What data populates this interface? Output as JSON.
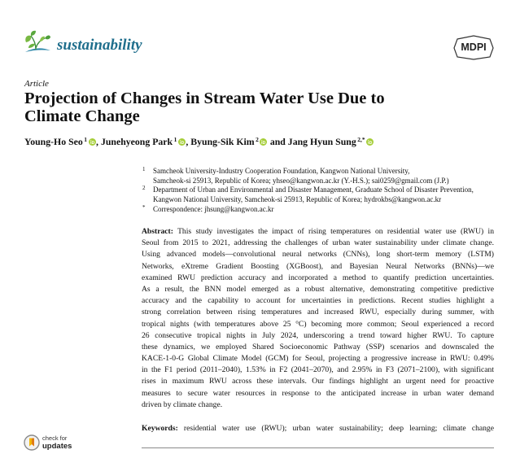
{
  "journal": {
    "name": "sustainability",
    "publisher": "MDPI"
  },
  "article_type": "Article",
  "title": {
    "lines": [
      "Projection of Changes in Stream Water Use Due to",
      "Climate Change"
    ]
  },
  "authors": [
    {
      "name": "Young-Ho Seo",
      "sup": "1",
      "sep": ", "
    },
    {
      "name": "Junehyeong Park",
      "sup": "1",
      "sep": ", "
    },
    {
      "name": "Byung-Sik Kim",
      "sup": "2",
      "sep": " and "
    },
    {
      "name": "Jang Hyun Sung",
      "sup": "2,*",
      "sep": ""
    }
  ],
  "affiliations": [
    {
      "marker": "1",
      "lines": [
        "Samcheok University-Industry Cooperation Foundation, Kangwon National University,",
        "Samcheok-si 25913, Republic of Korea; yhseo@kangwon.ac.kr (Y.-H.S.); sai0259@gmail.com (J.P.)"
      ]
    },
    {
      "marker": "2",
      "lines": [
        "Department of Urban and Environmental and Disaster Management, Graduate School of Disaster Prevention,",
        "Kangwon National University, Samcheok-si 25913, Republic of Korea; hydrokbs@kangwon.ac.kr"
      ]
    },
    {
      "marker": "*",
      "lines": [
        "Correspondence: jhsung@kangwon.ac.kr"
      ]
    }
  ],
  "abstract": {
    "label": "Abstract:",
    "lines": [
      "This study investigates the impact of rising temperatures on residential water use (RWU) in",
      "Seoul from 2015 to 2021, addressing the challenges of urban water sustainability under climate change.",
      "Using advanced models—convolutional neural networks (CNNs), long short-term memory (LSTM)",
      "Networks, eXtreme Gradient Boosting (XGBoost), and Bayesian Neural Networks (BNNs)—we",
      "examined RWU prediction accuracy and incorporated a method to quantify prediction uncertainties.",
      "As a result, the BNN model emerged as a robust alternative, demonstrating competitive predictive",
      "accuracy and the capability to account for uncertainties in predictions. Recent studies highlight a",
      "strong correlation between rising temperatures and increased RWU, especially during summer, with",
      "tropical nights (with temperatures above 25 °C) becoming more common; Seoul experienced a record",
      "26 consecutive tropical nights in July 2024, underscoring a trend toward higher RWU. To capture",
      "these dynamics, we employed Shared Socioeconomic Pathway (SSP) scenarios and downscaled the",
      "KACE-1-0-G Global Climate Model (GCM) for Seoul, projecting a progressive increase in RWU: 0.49%",
      "in the F1 period (2011–2040), 1.53% in F2 (2041–2070), and 2.95% in F3 (2071–2100), with significant",
      "rises in maximum RWU across these intervals. Our findings highlight an urgent need for proactive",
      "measures to secure water resources in response to the anticipated increase in urban water demand",
      "driven by climate change."
    ]
  },
  "keywords": {
    "label": "Keywords:",
    "text": "residential water use (RWU); urban water sustainability; deep learning; climate change"
  },
  "updates_badge": {
    "line1": "check for",
    "line2": "updates"
  },
  "icons": {
    "journal_logo": "sprout-leaf-icon",
    "publisher_logo": "mdpi-logo",
    "orcid": "orcid-icon",
    "updates": "check-for-updates-icon"
  },
  "colors": {
    "journal_teal": "#1f6e8c",
    "orcid_green": "#a6ce39",
    "text": "#111111"
  }
}
